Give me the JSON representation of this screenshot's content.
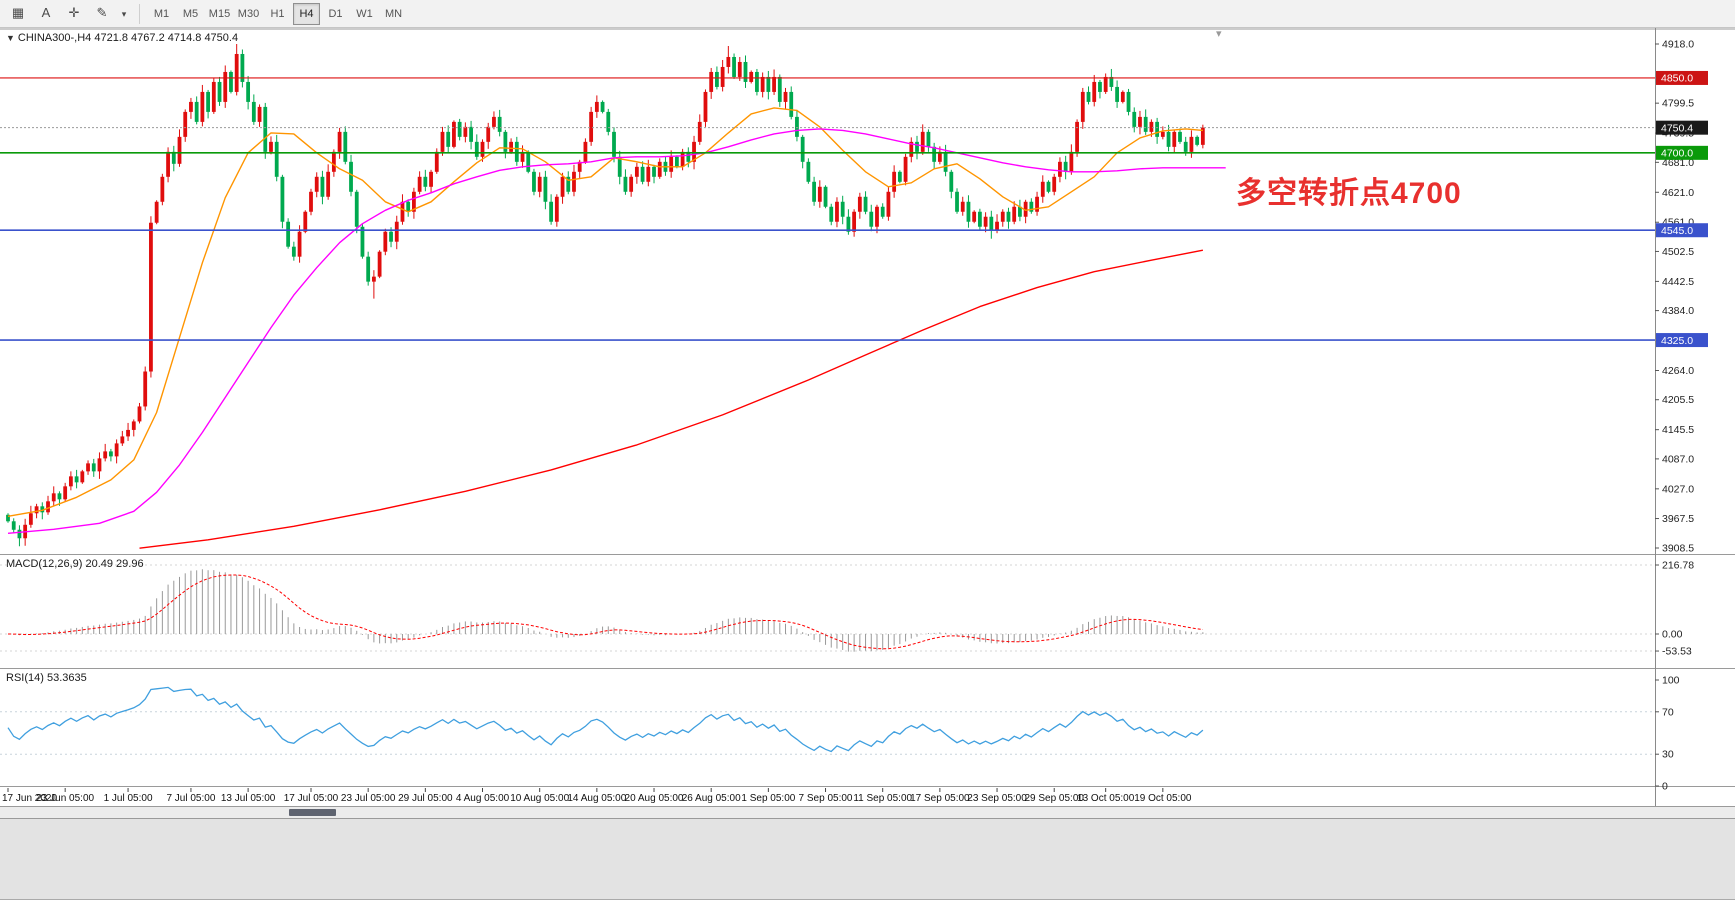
{
  "toolbar": {
    "icons": [
      {
        "name": "chart-window-icon",
        "glyph": "▦"
      },
      {
        "name": "cursor-tool-icon",
        "glyph": "A"
      },
      {
        "name": "crosshair-tool-icon",
        "glyph": "✛"
      },
      {
        "name": "drawing-tools-icon",
        "glyph": "✎"
      },
      {
        "name": "tools-dropdown-caret",
        "glyph": "▾"
      }
    ],
    "timeframes": [
      "M1",
      "M5",
      "M15",
      "M30",
      "H1",
      "H4",
      "D1",
      "W1",
      "MN"
    ],
    "active_timeframe": "H4"
  },
  "chart": {
    "title_line": "CHINA300-,H4 4721.8 4767.2 4714.8 4750.4",
    "context_caret": "▼",
    "shift_marker": "▾",
    "annotation": {
      "text": "多空转折点4700",
      "color": "#e8302e"
    },
    "ylim": {
      "top": 4918.0,
      "bottom": 3908.5
    },
    "y_ticks": [
      4918.0,
      4799.5,
      4739.5,
      4681.0,
      4621.0,
      4561.0,
      4502.5,
      4442.5,
      4384.0,
      4264.0,
      4205.5,
      4145.5,
      4087.0,
      4027.0,
      3967.5,
      3908.5
    ],
    "badges": [
      {
        "label": "4850.0",
        "price": 4850.0,
        "bg": "#cc1414",
        "fg": "#ffffff"
      },
      {
        "label": "4750.4",
        "price": 4750.4,
        "bg": "#1a1a1a",
        "fg": "#ffffff"
      },
      {
        "label": "4700.0",
        "price": 4700.0,
        "bg": "#0a9a0a",
        "fg": "#ffffff"
      },
      {
        "label": "4545.0",
        "price": 4545.0,
        "bg": "#3a52cc",
        "fg": "#ffffff"
      },
      {
        "label": "4325.0",
        "price": 4325.0,
        "bg": "#3a52cc",
        "fg": "#ffffff"
      }
    ],
    "hlines": [
      {
        "price": 4850.0,
        "color": "#dd1111",
        "w": 1.2,
        "dash": ""
      },
      {
        "price": 4700.0,
        "color": "#0a9a0a",
        "w": 1.6,
        "dash": ""
      },
      {
        "price": 4545.0,
        "color": "#3a52cc",
        "w": 1.6,
        "dash": ""
      },
      {
        "price": 4325.0,
        "color": "#3a52cc",
        "w": 1.6,
        "dash": ""
      },
      {
        "price": 4750.4,
        "color": "#9a9a9a",
        "w": 1,
        "dash": "2 2"
      }
    ],
    "colors": {
      "up": "#e00d0d",
      "down": "#00a94f",
      "ma_fast": "#ff9500",
      "ma_mid": "#ff00ff",
      "ma_slow": "#ff0000",
      "macd_hist": "#999999",
      "macd_signal": "#ff0000",
      "rsi": "#3f9fdf",
      "axis_text": "#222222",
      "level_dash": "#d4d4d4"
    }
  },
  "chart_data": {
    "type": "candlestick",
    "symbol": "CHINA300-",
    "timeframe": "H4",
    "current_ohlc": {
      "open": 4721.8,
      "high": 4767.2,
      "low": 4714.8,
      "close": 4750.4
    },
    "first_open": 3975,
    "closes": [
      3962,
      3945,
      3928,
      3955,
      3978,
      3992,
      3980,
      4002,
      4018,
      4006,
      4032,
      4052,
      4040,
      4062,
      4078,
      4062,
      4088,
      4102,
      4092,
      4118,
      4132,
      4145,
      4162,
      4192,
      4262,
      4560,
      4602,
      4652,
      4702,
      4678,
      4732,
      4782,
      4802,
      4762,
      4822,
      4782,
      4842,
      4802,
      4862,
      4822,
      4898,
      4842,
      4802,
      4762,
      4792,
      4702,
      4722,
      4652,
      4562,
      4512,
      4492,
      4542,
      4582,
      4622,
      4652,
      4612,
      4662,
      4702,
      4742,
      4682,
      4622,
      4552,
      4492,
      4442,
      4452,
      4502,
      4542,
      4522,
      4562,
      4602,
      4582,
      4622,
      4652,
      4632,
      4662,
      4702,
      4742,
      4712,
      4762,
      4732,
      4752,
      4722,
      4692,
      4722,
      4752,
      4772,
      4742,
      4702,
      4722,
      4682,
      4702,
      4662,
      4622,
      4652,
      4602,
      4562,
      4612,
      4652,
      4622,
      4662,
      4682,
      4722,
      4782,
      4802,
      4782,
      4742,
      4692,
      4652,
      4622,
      4652,
      4672,
      4642,
      4672,
      4652,
      4682,
      4662,
      4692,
      4672,
      4702,
      4682,
      4722,
      4762,
      4822,
      4862,
      4832,
      4872,
      4892,
      4852,
      4882,
      4842,
      4862,
      4822,
      4852,
      4822,
      4852,
      4802,
      4822,
      4772,
      4732,
      4682,
      4642,
      4602,
      4632,
      4592,
      4562,
      4602,
      4572,
      4542,
      4582,
      4612,
      4582,
      4552,
      4592,
      4572,
      4622,
      4662,
      4642,
      4692,
      4722,
      4702,
      4742,
      4712,
      4682,
      4702,
      4662,
      4622,
      4582,
      4602,
      4562,
      4582,
      4552,
      4572,
      4545,
      4562,
      4582,
      4562,
      4592,
      4572,
      4602,
      4582,
      4612,
      4642,
      4622,
      4652,
      4682,
      4662,
      4702,
      4762,
      4822,
      4802,
      4842,
      4822,
      4852,
      4832,
      4802,
      4822,
      4782,
      4752,
      4772,
      4742,
      4762,
      4732,
      4742,
      4712,
      4742,
      4722,
      4702,
      4732,
      4716,
      4750.4
    ],
    "wick_overrides": {
      "2": {
        "low": 3912
      },
      "40": {
        "high": 4918
      },
      "64": {
        "low": 4408
      },
      "126": {
        "high": 4914
      },
      "172": {
        "low": 4528
      },
      "193": {
        "high": 4868
      }
    },
    "ma_orange": [
      [
        0,
        3972
      ],
      [
        6,
        3984
      ],
      [
        12,
        4010
      ],
      [
        18,
        4045
      ],
      [
        22,
        4085
      ],
      [
        26,
        4180
      ],
      [
        30,
        4330
      ],
      [
        34,
        4480
      ],
      [
        38,
        4610
      ],
      [
        42,
        4700
      ],
      [
        46,
        4740
      ],
      [
        50,
        4738
      ],
      [
        54,
        4700
      ],
      [
        58,
        4668
      ],
      [
        62,
        4645
      ],
      [
        66,
        4602
      ],
      [
        70,
        4582
      ],
      [
        74,
        4602
      ],
      [
        78,
        4642
      ],
      [
        82,
        4680
      ],
      [
        86,
        4710
      ],
      [
        90,
        4708
      ],
      [
        94,
        4682
      ],
      [
        98,
        4645
      ],
      [
        102,
        4652
      ],
      [
        106,
        4690
      ],
      [
        110,
        4682
      ],
      [
        114,
        4672
      ],
      [
        118,
        4672
      ],
      [
        122,
        4700
      ],
      [
        126,
        4740
      ],
      [
        130,
        4778
      ],
      [
        134,
        4790
      ],
      [
        138,
        4785
      ],
      [
        142,
        4752
      ],
      [
        146,
        4705
      ],
      [
        150,
        4662
      ],
      [
        154,
        4632
      ],
      [
        158,
        4640
      ],
      [
        162,
        4668
      ],
      [
        166,
        4678
      ],
      [
        170,
        4648
      ],
      [
        174,
        4612
      ],
      [
        178,
        4585
      ],
      [
        182,
        4592
      ],
      [
        186,
        4622
      ],
      [
        190,
        4652
      ],
      [
        194,
        4700
      ],
      [
        198,
        4730
      ],
      [
        202,
        4744
      ],
      [
        206,
        4748
      ],
      [
        209,
        4745
      ]
    ],
    "ma_magenta": [
      [
        0,
        3938
      ],
      [
        8,
        3946
      ],
      [
        16,
        3958
      ],
      [
        22,
        3982
      ],
      [
        26,
        4020
      ],
      [
        30,
        4075
      ],
      [
        34,
        4140
      ],
      [
        38,
        4210
      ],
      [
        42,
        4280
      ],
      [
        46,
        4350
      ],
      [
        50,
        4415
      ],
      [
        54,
        4470
      ],
      [
        58,
        4520
      ],
      [
        62,
        4558
      ],
      [
        66,
        4585
      ],
      [
        70,
        4605
      ],
      [
        74,
        4620
      ],
      [
        78,
        4638
      ],
      [
        82,
        4652
      ],
      [
        86,
        4665
      ],
      [
        90,
        4672
      ],
      [
        94,
        4676
      ],
      [
        98,
        4678
      ],
      [
        102,
        4682
      ],
      [
        106,
        4690
      ],
      [
        110,
        4692
      ],
      [
        114,
        4692
      ],
      [
        118,
        4694
      ],
      [
        122,
        4700
      ],
      [
        126,
        4712
      ],
      [
        130,
        4726
      ],
      [
        134,
        4738
      ],
      [
        138,
        4745
      ],
      [
        142,
        4748
      ],
      [
        146,
        4745
      ],
      [
        150,
        4738
      ],
      [
        154,
        4728
      ],
      [
        158,
        4718
      ],
      [
        162,
        4710
      ],
      [
        166,
        4700
      ],
      [
        170,
        4690
      ],
      [
        174,
        4680
      ],
      [
        178,
        4672
      ],
      [
        182,
        4666
      ],
      [
        186,
        4662
      ],
      [
        190,
        4662
      ],
      [
        194,
        4664
      ],
      [
        198,
        4668
      ],
      [
        202,
        4670
      ],
      [
        206,
        4670
      ],
      [
        213,
        4670
      ]
    ],
    "ma_red": [
      [
        23,
        3908
      ],
      [
        35,
        3925
      ],
      [
        50,
        3952
      ],
      [
        65,
        3985
      ],
      [
        80,
        4022
      ],
      [
        95,
        4065
      ],
      [
        110,
        4115
      ],
      [
        125,
        4175
      ],
      [
        140,
        4245
      ],
      [
        150,
        4295
      ],
      [
        160,
        4345
      ],
      [
        170,
        4392
      ],
      [
        180,
        4430
      ],
      [
        190,
        4462
      ],
      [
        200,
        4485
      ],
      [
        209,
        4505
      ]
    ],
    "time_labels": [
      [
        0,
        "17 Jun 2020"
      ],
      [
        10,
        "23 Jun 05:00"
      ],
      [
        21,
        "1 Jul 05:00"
      ],
      [
        32,
        "7 Jul 05:00"
      ],
      [
        42,
        "13 Jul 05:00"
      ],
      [
        53,
        "17 Jul 05:00"
      ],
      [
        63,
        "23 Jul 05:00"
      ],
      [
        73,
        "29 Jul 05:00"
      ],
      [
        83,
        "4 Aug 05:00"
      ],
      [
        93,
        "10 Aug 05:00"
      ],
      [
        103,
        "14 Aug 05:00"
      ],
      [
        113,
        "20 Aug 05:00"
      ],
      [
        123,
        "26 Aug 05:00"
      ],
      [
        133,
        "1 Sep 05:00"
      ],
      [
        143,
        "7 Sep 05:00"
      ],
      [
        153,
        "11 Sep 05:00"
      ],
      [
        163,
        "17 Sep 05:00"
      ],
      [
        173,
        "23 Sep 05:00"
      ],
      [
        183,
        "29 Sep 05:00"
      ],
      [
        192,
        "13 Oct 05:00"
      ],
      [
        202,
        "19 Oct 05:00"
      ]
    ],
    "indicators": {
      "macd": {
        "title": "MACD(12,26,9) 20.49 29.96",
        "params": [
          12,
          26,
          9
        ],
        "value": 20.49,
        "signal_value": 29.96,
        "y_ticks": [
          {
            "v": 216.78,
            "label": "216.78"
          },
          {
            "v": 0,
            "label": "0.00"
          },
          {
            "v": -53.53,
            "label": "-53.53"
          }
        ]
      },
      "rsi": {
        "title": "RSI(14) 53.3635",
        "period": 14,
        "value": 53.3635,
        "levels": [
          70,
          30
        ],
        "y_ticks": [
          {
            "v": 100,
            "label": "100"
          },
          {
            "v": 70,
            "label": "70"
          },
          {
            "v": 30,
            "label": "30"
          },
          {
            "v": 0,
            "label": "0"
          }
        ]
      }
    }
  }
}
